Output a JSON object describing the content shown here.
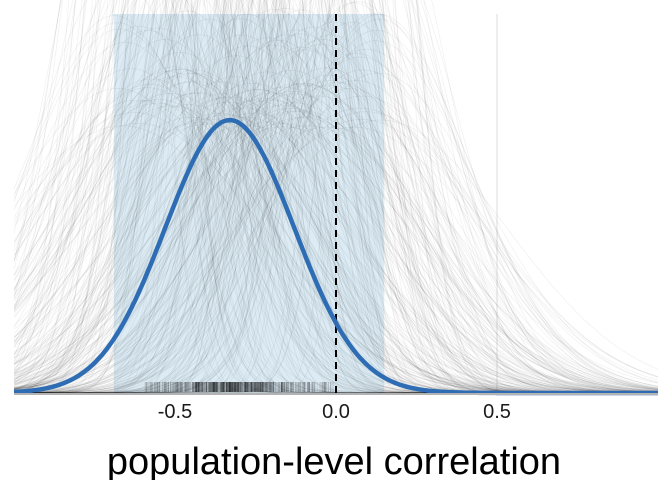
{
  "chart_data": {
    "type": "area",
    "title": "",
    "xlabel": "population-level correlation",
    "ylabel": "",
    "xlim": [
      -1.0,
      1.0
    ],
    "ylim": [
      0,
      1.0
    ],
    "x_ticks": [
      -0.5,
      0.0,
      0.5
    ],
    "x_tick_labels": [
      "-0.5",
      "0.0",
      "0.5"
    ],
    "grid": {
      "x_major": true,
      "y_major": false
    },
    "reference_line": {
      "x": 0.0,
      "style": "dashed",
      "color": "#000000"
    },
    "interval_band": {
      "x_start": -0.69,
      "x_end": 0.15,
      "color": "#d6e7f2"
    },
    "posterior_mean_curve": {
      "center": -0.33,
      "sd": 0.2,
      "peak": 0.72,
      "color": "#2e6db4"
    },
    "posterior_draws": {
      "count": 320,
      "color": "#000000",
      "center_range": [
        -0.7,
        0.15
      ],
      "sd_range": [
        0.07,
        0.4
      ]
    },
    "rug": {
      "x_range": [
        -0.6,
        0.0
      ],
      "concentration_center": -0.33,
      "color": "#000000"
    }
  }
}
